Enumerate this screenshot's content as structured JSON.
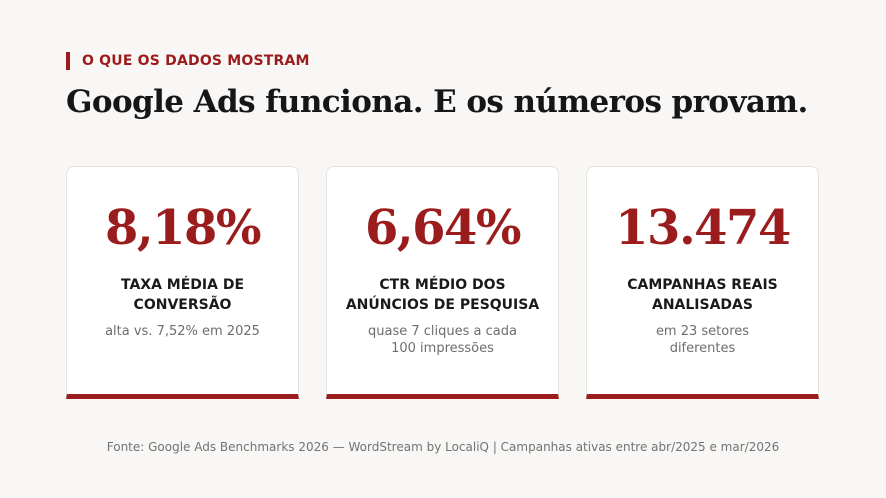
{
  "eyebrow": "O QUE OS DADOS MOSTRAM",
  "headline": "Google Ads funciona. E os números provam.",
  "cards": [
    {
      "value": "8,18%",
      "label_line1": "TAXA MÉDIA DE",
      "label_line2": "CONVERSÃO",
      "note_line1": "alta vs. 7,52% em 2025",
      "note_line2": ""
    },
    {
      "value": "6,64%",
      "label_line1": "CTR MÉDIO DOS",
      "label_line2": "ANÚNCIOS DE PESQUISA",
      "note_line1": "quase 7 cliques a cada",
      "note_line2": "100 impressões"
    },
    {
      "value": "13.474",
      "label_line1": "CAMPANHAS REAIS",
      "label_line2": "ANALISADAS",
      "note_line1": "em 23 setores",
      "note_line2": "diferentes"
    }
  ],
  "footer": "Fonte: Google Ads Benchmarks 2026 — WordStream by LocaliQ  |  Campanhas ativas entre abr/2025 e mar/2026",
  "colors": {
    "accent": "#9b1c1c",
    "background": "#f8f7f5",
    "card": "#ffffff",
    "text": "#161616"
  }
}
